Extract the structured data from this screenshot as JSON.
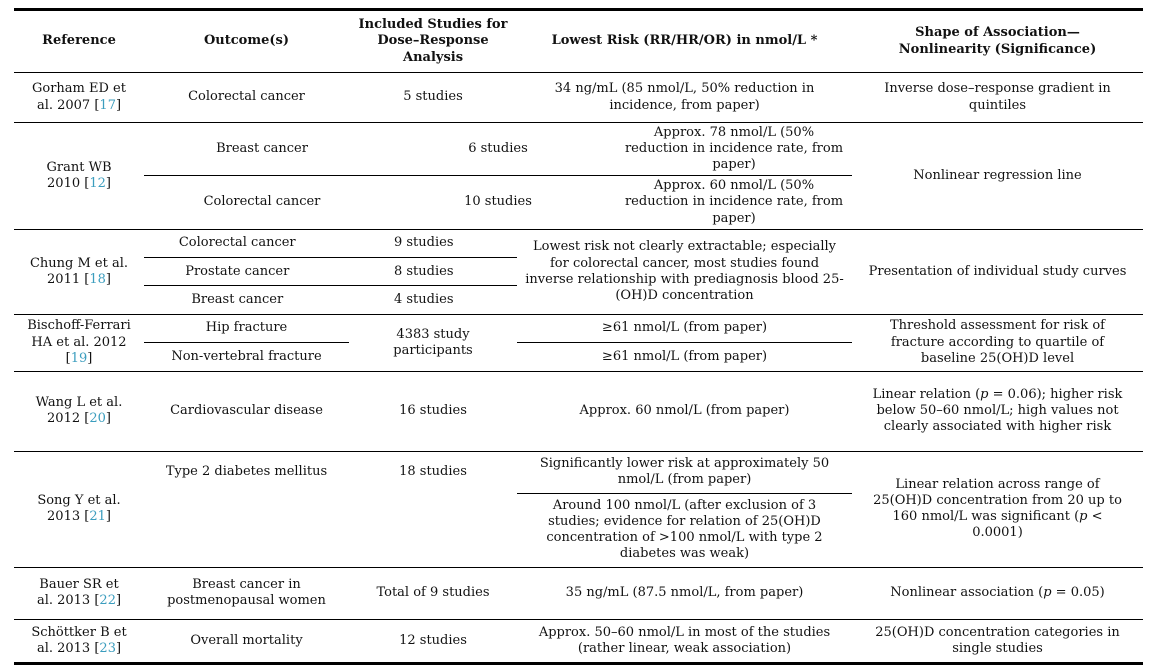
{
  "meta": {
    "citation_color": "#3b9dbe",
    "text_color": "#111111",
    "rule_color": "#000000"
  },
  "punct": {
    "open_bracket": " [",
    "close_bracket": "]"
  },
  "header": {
    "reference": "Reference",
    "outcomes": "Outcome(s)",
    "studies": "Included Studies for Dose–Response Analysis",
    "lowest_risk": "Lowest Risk (RR/HR/OR) in nmol/L *",
    "shape": "Shape of Association—Nonlinearity (Significance)"
  },
  "rows": {
    "gorham": {
      "reference": "Gorham ED et al. 2007",
      "citation": "17",
      "outcome": "Colorectal cancer",
      "studies": "5 studies",
      "risk": "34 ng/mL (85 nmol/L, 50% reduction in incidence, from paper)",
      "shape": "Inverse dose–response gradient in quintiles"
    },
    "grant": {
      "reference": "Grant WB 2010",
      "citation": "12",
      "sub": [
        {
          "outcome": "Breast cancer",
          "studies": "6 studies",
          "risk": "Approx. 78 nmol/L (50% reduction in incidence rate, from paper)"
        },
        {
          "outcome": "Colorectal cancer",
          "studies": "10 studies",
          "risk": "Approx. 60 nmol/L (50% reduction in incidence rate, from paper)"
        }
      ],
      "shape": "Nonlinear regression line"
    },
    "chung": {
      "reference": "Chung M et al. 2011",
      "citation": "18",
      "sub": [
        {
          "outcome": "Colorectal cancer",
          "studies": "9 studies"
        },
        {
          "outcome": "Prostate cancer",
          "studies": "8 studies"
        },
        {
          "outcome": "Breast cancer",
          "studies": "4 studies"
        }
      ],
      "risk": "Lowest risk not clearly extractable; especially for colorectal cancer, most studies found inverse relationship with prediagnosis blood 25- (OH)D concentration",
      "shape": "Presentation of individual study curves"
    },
    "bischoff": {
      "reference": "Bischoff-Ferrari HA et al. 2012",
      "citation": "19",
      "outcomes": [
        "Hip fracture",
        "Non-vertebral fracture"
      ],
      "studies": "4383 study participants",
      "risks": [
        "≥61 nmol/L (from paper)",
        "≥61 nmol/L (from paper)"
      ],
      "shape": "Threshold assessment for risk of fracture according to quartile of baseline 25(OH)D level"
    },
    "wang": {
      "reference": "Wang L et al. 2012",
      "citation": "20",
      "outcome": "Cardiovascular disease",
      "studies": "16 studies",
      "risk": "Approx. 60 nmol/L (from paper)",
      "shape": "Linear relation (p = 0.06); higher risk below 50–60 nmol/L; high values not clearly associated with higher risk"
    },
    "song": {
      "reference": "Song Y et al. 2013",
      "citation": "21",
      "outcome": "Type 2 diabetes mellitus",
      "studies": "18 studies",
      "risks": [
        "Significantly lower risk at approximately 50 nmol/L (from paper)",
        "Around 100 nmol/L (after exclusion of 3 studies; evidence for relation of 25(OH)D concentration of >100 nmol/L with type 2 diabetes was weak)"
      ],
      "shape": "Linear relation across range of 25(OH)D concentration from 20 up to 160 nmol/L was significant (p < 0.0001)"
    },
    "bauer": {
      "reference": "Bauer SR et al. 2013",
      "citation": "22",
      "outcome": "Breast cancer in postmenopausal women",
      "studies": "Total of 9 studies",
      "risk": "35 ng/mL (87.5 nmol/L, from paper)",
      "shape": "Nonlinear association (p = 0.05)"
    },
    "schottker": {
      "reference": "Schöttker B et al. 2013",
      "citation": "23",
      "outcome": "Overall mortality",
      "studies": "12 studies",
      "risk": "Approx. 50–60 nmol/L in most of the studies (rather linear, weak association)",
      "shape": "25(OH)D concentration categories in single studies"
    }
  }
}
